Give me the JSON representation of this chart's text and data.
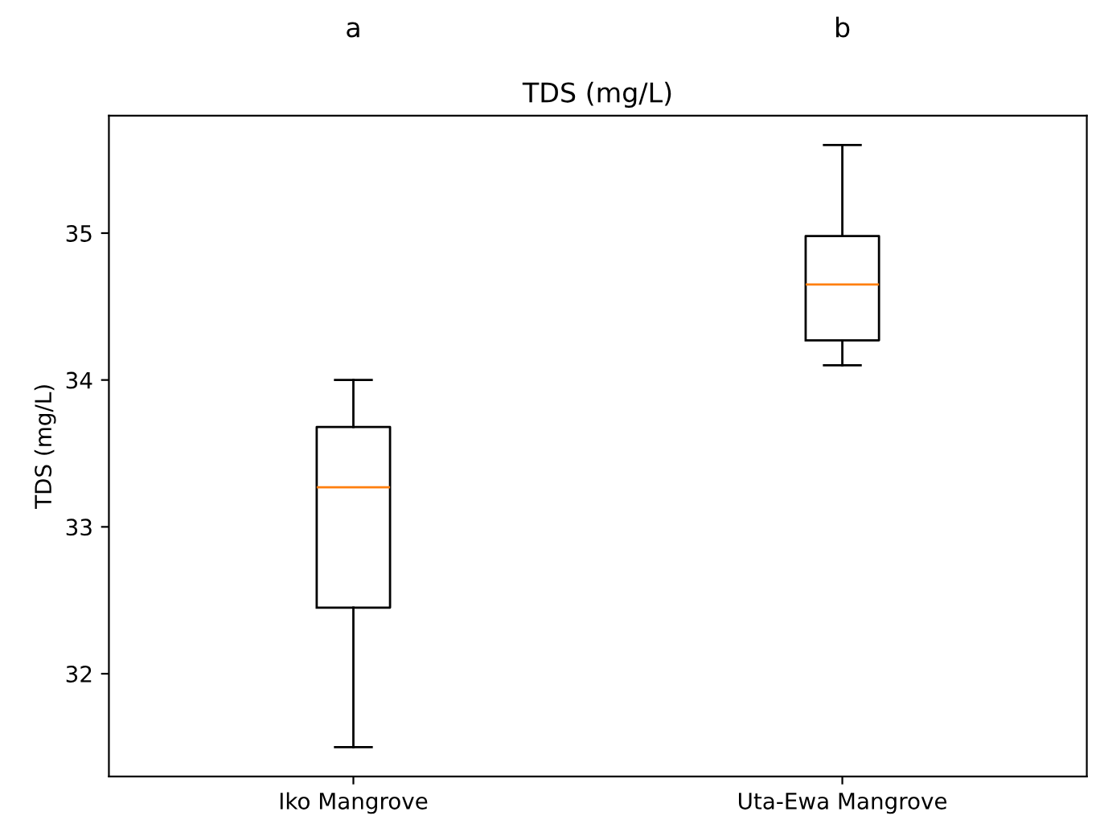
{
  "chart_data": {
    "type": "box",
    "title": "TDS (mg/L)",
    "ylabel": "TDS (mg/L)",
    "categories": [
      "Iko Mangrove",
      "Uta-Ewa Mangrove"
    ],
    "series": [
      {
        "color": "#000000",
        "boxes": [
          {
            "low": 31.5,
            "q1": 32.45,
            "median": 33.27,
            "q3": 33.68,
            "high": 34.0
          },
          {
            "low": 34.1,
            "q1": 34.27,
            "median": 34.65,
            "q3": 34.98,
            "high": 35.6
          }
        ]
      }
    ],
    "ylim": [
      31.3,
      35.8
    ],
    "yticks": [
      32,
      33,
      34,
      35
    ],
    "annotations": [
      "a",
      "b"
    ],
    "grid": false,
    "legend": false
  }
}
